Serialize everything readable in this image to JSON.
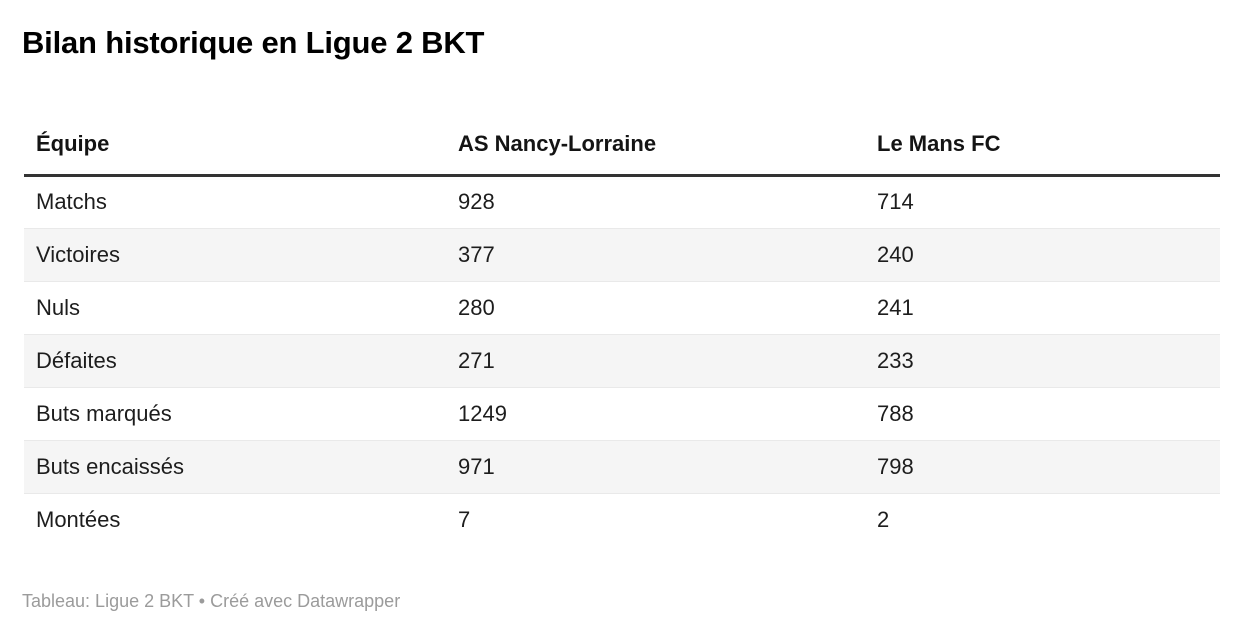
{
  "title": "Bilan historique en Ligue 2 BKT",
  "footer": "Tableau: Ligue 2 BKT • Créé avec Datawrapper",
  "colors": {
    "title_text": "#000000",
    "header_text": "#141414",
    "body_text": "#1d1d1d",
    "header_rule": "#333333",
    "row_stripe": "#f5f5f5",
    "row_divider": "#e9e9e9",
    "footer_text": "#9b9b9b",
    "background": "#ffffff"
  },
  "chart_data": {
    "type": "table",
    "title": "Bilan historique en Ligue 2 BKT",
    "columns": [
      "Équipe",
      "AS Nancy-Lorraine",
      "Le Mans FC"
    ],
    "rows": [
      [
        "Matchs",
        "928",
        "714"
      ],
      [
        "Victoires",
        "377",
        "240"
      ],
      [
        "Nuls",
        "280",
        "241"
      ],
      [
        "Défaites",
        "271",
        "233"
      ],
      [
        "Buts marqués",
        "1249",
        "788"
      ],
      [
        "Buts encaissés",
        "971",
        "798"
      ],
      [
        "Montées",
        "7",
        "2"
      ]
    ],
    "footnote": "Tableau: Ligue 2 BKT • Créé avec Datawrapper",
    "layout_hints": {
      "zebra_striped_rows": [
        1,
        3,
        5
      ],
      "header_rule": "3px solid dark",
      "grid": "horizontal row dividers only"
    }
  }
}
